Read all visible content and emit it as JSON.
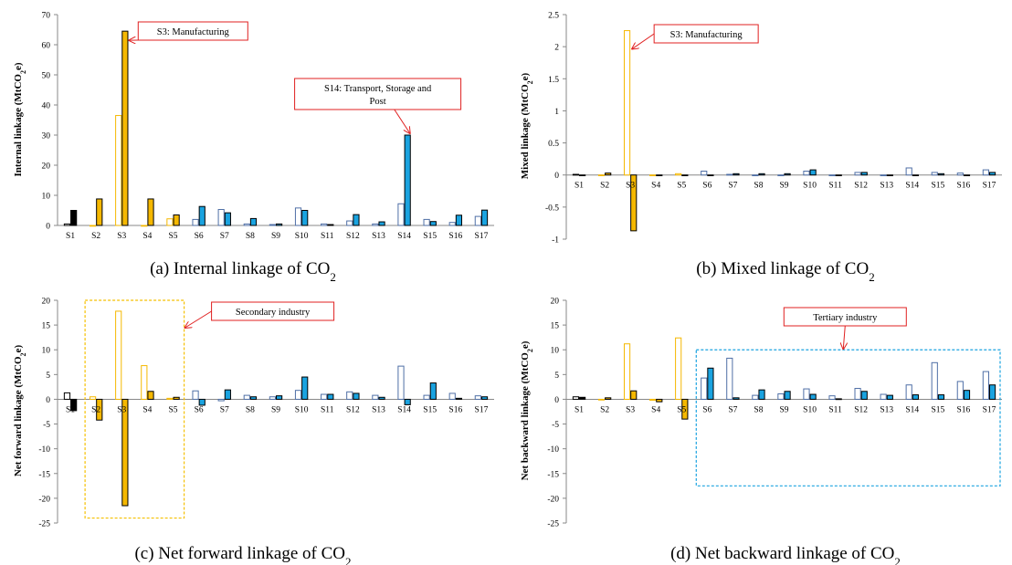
{
  "colors": {
    "primary_outline": "#f5b800",
    "primary_fill": "#f5b800",
    "secondary_outline": "#7a9bc4",
    "secondary_fill": "#1aa3e0",
    "tertiary_outline": "#4f6fa6",
    "tertiary_fill": "#1aa3e0",
    "s1_fill": "#000000",
    "annotation_border": "#e02020",
    "secondary_box": "#f5c000",
    "tertiary_box": "#1aa3e0"
  },
  "chart_data": [
    {
      "type": "bar",
      "caption_prefix": "(a) Internal linkage of CO",
      "caption_sub": "2",
      "ylabel_prefix": "Internal linkage (MtCO",
      "ylabel_sub": "2",
      "ylabel_suffix": "e)",
      "categories": [
        "S1",
        "S2",
        "S3",
        "S4",
        "S5",
        "S6",
        "S7",
        "S8",
        "S9",
        "S10",
        "S11",
        "S12",
        "S13",
        "S14",
        "S15",
        "S16",
        "S17"
      ],
      "series": [
        {
          "values": [
            0.5,
            0,
            36.5,
            0,
            2.2,
            2,
            5.3,
            0.5,
            0.3,
            5.8,
            0.5,
            1.5,
            0.5,
            7.2,
            2,
            1,
            3
          ]
        },
        {
          "values": [
            5,
            8.8,
            64.5,
            8.8,
            3.5,
            6.3,
            4.2,
            2.3,
            0.5,
            5,
            0.3,
            3.6,
            1.2,
            30,
            1.3,
            3.4,
            5.1
          ]
        }
      ],
      "ylim": [
        0,
        70
      ],
      "yticks": [
        "0",
        "10",
        "20",
        "30",
        "40",
        "50",
        "60",
        "70"
      ],
      "annotations": [
        {
          "text": "S3: Manufacturing",
          "target_category": "S3"
        },
        {
          "text_lines": [
            "S14: Transport, Storage and",
            "Post"
          ],
          "target_category": "S14"
        }
      ]
    },
    {
      "type": "bar",
      "caption_prefix": "(b) Mixed linkage of CO",
      "caption_sub": "2",
      "ylabel_prefix": "Mixed  linkage (MtCO",
      "ylabel_sub": "2",
      "ylabel_suffix": "e)",
      "categories": [
        "S1",
        "S2",
        "S3",
        "S4",
        "S5",
        "S6",
        "S7",
        "S8",
        "S9",
        "S10",
        "S11",
        "S12",
        "S13",
        "S14",
        "S15",
        "S16",
        "S17"
      ],
      "series": [
        {
          "values": [
            0.01,
            0,
            2.25,
            0,
            0.02,
            0.06,
            0.01,
            0,
            0,
            0.06,
            0,
            0.04,
            0,
            0.11,
            0.04,
            0.03,
            0.08
          ]
        },
        {
          "values": [
            -0.01,
            0.03,
            -0.87,
            0,
            0,
            0,
            0.02,
            0.02,
            0.02,
            0.08,
            0,
            0.04,
            0,
            0,
            0.02,
            0,
            0.04
          ]
        }
      ],
      "ylim": [
        -1,
        2.5
      ],
      "yticks": [
        "-1",
        "-0.5",
        "0",
        "0.5",
        "1",
        "1.5",
        "2",
        "2.5"
      ],
      "annotations": [
        {
          "text": "S3: Manufacturing",
          "target_category": "S3"
        }
      ]
    },
    {
      "type": "bar",
      "caption_prefix": "(c) Net forward linkage of CO",
      "caption_sub": "2",
      "ylabel_prefix": "Net forward linkage (MtCO",
      "ylabel_sub": "2",
      "ylabel_suffix": "e)",
      "categories": [
        "S1",
        "S2",
        "S3",
        "S4",
        "S5",
        "S6",
        "S7",
        "S8",
        "S9",
        "S10",
        "S11",
        "S12",
        "S13",
        "S14",
        "S15",
        "S16",
        "S17"
      ],
      "series": [
        {
          "values": [
            1.3,
            0.5,
            17.8,
            6.8,
            0.2,
            1.7,
            -0.3,
            0.8,
            0.5,
            1.8,
            1,
            1.5,
            0.8,
            6.7,
            0.8,
            1.2,
            0.7
          ]
        },
        {
          "values": [
            -2.3,
            -4.2,
            -21.5,
            1.6,
            0.4,
            -1.2,
            1.9,
            0.5,
            0.7,
            4.5,
            1,
            1.2,
            0.4,
            -1.1,
            3.3,
            0.2,
            0.5
          ]
        }
      ],
      "ylim": [
        -25,
        20
      ],
      "yticks": [
        "-25",
        "-20",
        "-15",
        "-10",
        "-5",
        "0",
        "5",
        "10",
        "15",
        "20"
      ],
      "annotations": [
        {
          "text": "Secondary industry",
          "region": [
            "S2",
            "S5"
          ]
        }
      ]
    },
    {
      "type": "bar",
      "caption_prefix": "(d) Net backward linkage of CO",
      "caption_sub": "2",
      "ylabel_prefix": "Net backward linkage (MtCO",
      "ylabel_sub": "2",
      "ylabel_suffix": "e)",
      "categories": [
        "S1",
        "S2",
        "S3",
        "S4",
        "S5",
        "S6",
        "S7",
        "S8",
        "S9",
        "S10",
        "S11",
        "S12",
        "S13",
        "S14",
        "S15",
        "S16",
        "S17"
      ],
      "series": [
        {
          "values": [
            0.5,
            0,
            11.2,
            -0.2,
            12.4,
            4.3,
            8.3,
            0.8,
            1.1,
            2.1,
            0.7,
            2.2,
            1,
            2.9,
            7.4,
            3.6,
            5.6
          ]
        },
        {
          "values": [
            0.4,
            0.3,
            1.7,
            -0.5,
            -4,
            6.3,
            0.3,
            1.9,
            1.6,
            1,
            0.1,
            1.6,
            0.8,
            0.9,
            0.9,
            1.8,
            2.9
          ]
        }
      ],
      "ylim": [
        -25,
        20
      ],
      "yticks": [
        "-25",
        "-20",
        "-15",
        "-10",
        "-5",
        "0",
        "5",
        "10",
        "15",
        "20"
      ],
      "annotations": [
        {
          "text": "Tertiary industry",
          "region": [
            "S6",
            "S17"
          ]
        }
      ]
    }
  ]
}
